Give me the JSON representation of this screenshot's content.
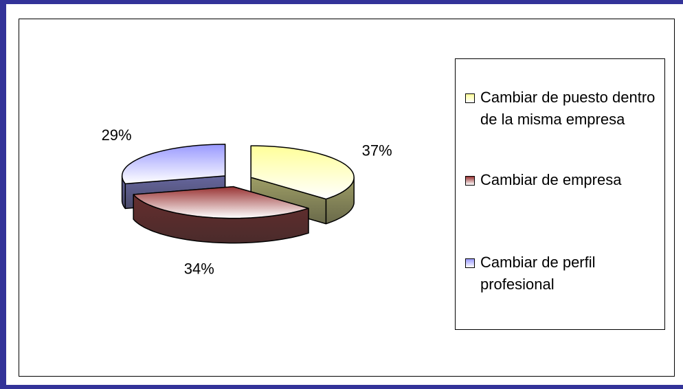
{
  "chart_data": {
    "type": "pie",
    "categories": [
      "Cambiar de puesto dentro de la misma empresa",
      "Cambiar de empresa",
      "Cambiar de perfil profesional"
    ],
    "values": [
      37,
      34,
      29
    ],
    "value_labels": [
      "37%",
      "34%",
      "29%"
    ],
    "colors": [
      "#ffff99",
      "#993333",
      "#9999ff"
    ],
    "legend": "right"
  }
}
